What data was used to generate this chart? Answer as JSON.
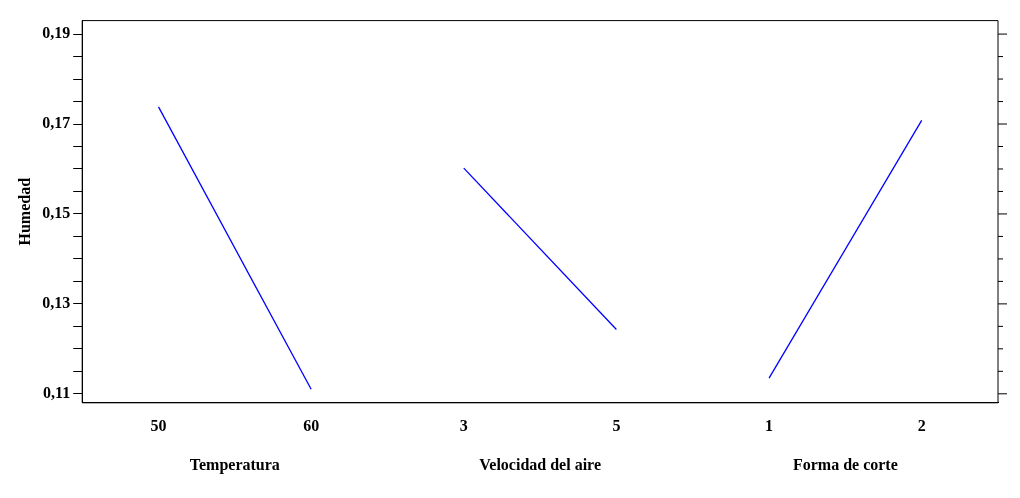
{
  "chart_data": {
    "type": "line",
    "ylabel": "Humedad",
    "categories": [
      "50",
      "60",
      "3",
      "5",
      "1",
      "2"
    ],
    "series": [
      {
        "color": "#0000ff",
        "values": [
          0.1738,
          0.111,
          null,
          null,
          null,
          null
        ]
      },
      {
        "color": "#0000ff",
        "values": [
          null,
          null,
          0.1602,
          0.1243,
          null,
          null
        ]
      },
      {
        "color": "#0000ff",
        "values": [
          null,
          null,
          null,
          null,
          0.1135,
          0.1708
        ]
      }
    ],
    "annotations": [
      "Temperatura",
      "Velocidad del aire",
      "Forma de corte"
    ],
    "ylim": [
      0.108,
      0.193
    ],
    "yticks": [
      {
        "value": 0.11,
        "label": "0,11"
      },
      {
        "value": 0.115,
        "label": null
      },
      {
        "value": 0.12,
        "label": null
      },
      {
        "value": 0.125,
        "label": null
      },
      {
        "value": 0.13,
        "label": "0,13"
      },
      {
        "value": 0.135,
        "label": null
      },
      {
        "value": 0.14,
        "label": null
      },
      {
        "value": 0.145,
        "label": null
      },
      {
        "value": 0.15,
        "label": "0,15"
      },
      {
        "value": 0.155,
        "label": null
      },
      {
        "value": 0.16,
        "label": null
      },
      {
        "value": 0.165,
        "label": null
      },
      {
        "value": 0.17,
        "label": "0,17"
      },
      {
        "value": 0.175,
        "label": null
      },
      {
        "value": 0.18,
        "label": null
      },
      {
        "value": 0.185,
        "label": null
      },
      {
        "value": 0.19,
        "label": "0,19"
      }
    ],
    "grid": false,
    "legend": false,
    "marker": "none",
    "line_style": "solid"
  }
}
